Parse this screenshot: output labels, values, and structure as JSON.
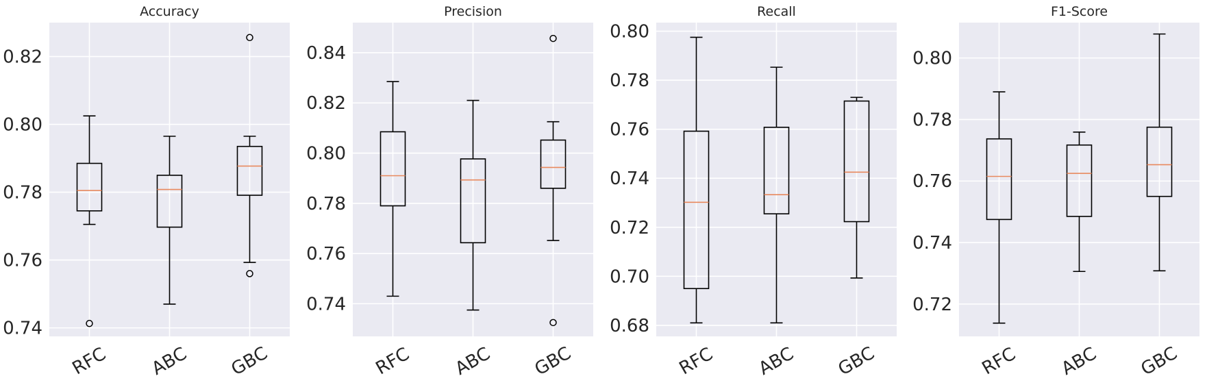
{
  "chart_data": [
    {
      "type": "box",
      "title": "Accuracy",
      "categories": [
        "RFC",
        "ABC",
        "GBC"
      ],
      "ylim": [
        0.7375,
        0.83
      ],
      "yticks": [
        0.74,
        0.76,
        0.78,
        0.8,
        0.82
      ],
      "ytick_labels": [
        "0.74",
        "0.76",
        "0.78",
        "0.80",
        "0.82"
      ],
      "grid": true,
      "boxes": [
        {
          "whislo": 0.7705,
          "q1": 0.7745,
          "med": 0.7805,
          "q3": 0.7885,
          "whishi": 0.8025,
          "fliers": [
            0.7413
          ]
        },
        {
          "whislo": 0.747,
          "q1": 0.7697,
          "med": 0.7808,
          "q3": 0.785,
          "whishi": 0.7965,
          "fliers": []
        },
        {
          "whislo": 0.7593,
          "q1": 0.7791,
          "med": 0.7877,
          "q3": 0.7935,
          "whishi": 0.7965,
          "fliers": [
            0.8256,
            0.756
          ]
        }
      ]
    },
    {
      "type": "box",
      "title": "Precision",
      "categories": [
        "RFC",
        "ABC",
        "GBC"
      ],
      "ylim": [
        0.727,
        0.852
      ],
      "yticks": [
        0.74,
        0.76,
        0.78,
        0.8,
        0.82,
        0.84
      ],
      "ytick_labels": [
        "0.74",
        "0.76",
        "0.78",
        "0.80",
        "0.82",
        "0.84"
      ],
      "grid": true,
      "boxes": [
        {
          "whislo": 0.743,
          "q1": 0.779,
          "med": 0.791,
          "q3": 0.8085,
          "whishi": 0.8285,
          "fliers": []
        },
        {
          "whislo": 0.7375,
          "q1": 0.7643,
          "med": 0.7893,
          "q3": 0.7977,
          "whishi": 0.821,
          "fliers": []
        },
        {
          "whislo": 0.7652,
          "q1": 0.786,
          "med": 0.7943,
          "q3": 0.8052,
          "whishi": 0.8125,
          "fliers": [
            0.8457,
            0.7325
          ]
        }
      ]
    },
    {
      "type": "box",
      "title": "Recall",
      "categories": [
        "RFC",
        "ABC",
        "GBC"
      ],
      "ylim": [
        0.6755,
        0.8035
      ],
      "yticks": [
        0.68,
        0.7,
        0.72,
        0.74,
        0.76,
        0.78,
        0.8
      ],
      "ytick_labels": [
        "0.68",
        "0.70",
        "0.72",
        "0.74",
        "0.76",
        "0.78",
        "0.80"
      ],
      "grid": true,
      "boxes": [
        {
          "whislo": 0.681,
          "q1": 0.695,
          "med": 0.7302,
          "q3": 0.7592,
          "whishi": 0.7975,
          "fliers": []
        },
        {
          "whislo": 0.681,
          "q1": 0.7255,
          "med": 0.7333,
          "q3": 0.7608,
          "whishi": 0.7853,
          "fliers": []
        },
        {
          "whislo": 0.6993,
          "q1": 0.7223,
          "med": 0.7425,
          "q3": 0.7715,
          "whishi": 0.773,
          "fliers": []
        }
      ]
    },
    {
      "type": "box",
      "title": "F1-Score",
      "categories": [
        "RFC",
        "ABC",
        "GBC"
      ],
      "ylim": [
        0.7095,
        0.8115
      ],
      "yticks": [
        0.72,
        0.74,
        0.76,
        0.78,
        0.8
      ],
      "ytick_labels": [
        "0.72",
        "0.74",
        "0.76",
        "0.78",
        "0.80"
      ],
      "grid": true,
      "boxes": [
        {
          "whislo": 0.7138,
          "q1": 0.7475,
          "med": 0.7615,
          "q3": 0.7737,
          "whishi": 0.789,
          "fliers": []
        },
        {
          "whislo": 0.7306,
          "q1": 0.7485,
          "med": 0.7625,
          "q3": 0.7717,
          "whishi": 0.7759,
          "fliers": []
        },
        {
          "whislo": 0.7308,
          "q1": 0.755,
          "med": 0.7653,
          "q3": 0.7775,
          "whishi": 0.8078,
          "fliers": []
        }
      ]
    }
  ],
  "colors": {
    "panel_background": "#eaeaf2",
    "grid": "#ffffff",
    "box": "#000000",
    "median": "#e8895e",
    "text": "#262626"
  }
}
